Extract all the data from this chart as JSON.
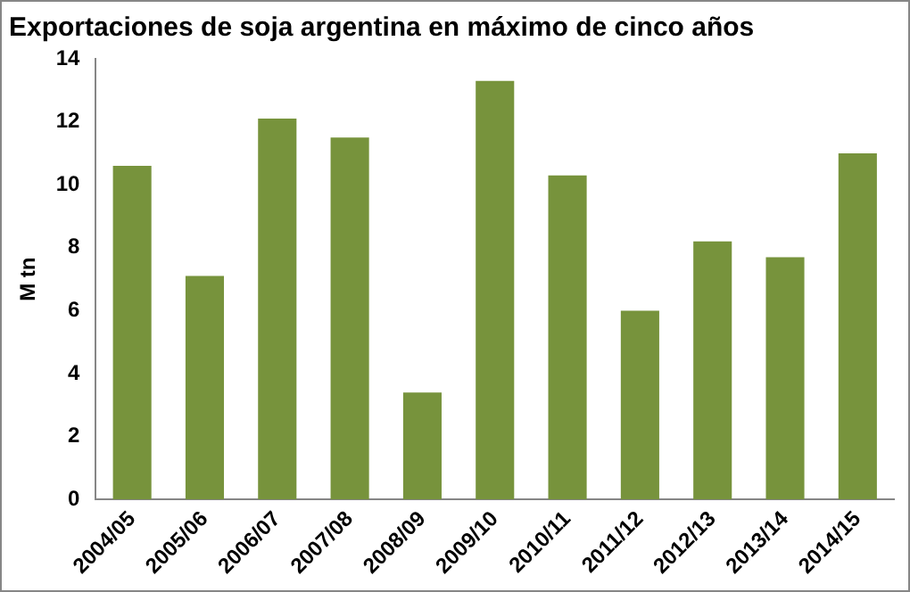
{
  "chart_data": {
    "type": "bar",
    "title": "Exportaciones de soja argentina en máximo de cinco años",
    "ylabel": "M tn",
    "categories": [
      "2004/05",
      "2005/06",
      "2006/07",
      "2007/08",
      "2008/09",
      "2009/10",
      "2010/11",
      "2011/12",
      "2012/13",
      "2013/14",
      "2014/15"
    ],
    "values": [
      10.6,
      7.1,
      12.1,
      11.5,
      3.4,
      13.3,
      10.3,
      6.0,
      8.2,
      7.7,
      11.0
    ],
    "color": "#77933c",
    "ylim": [
      0,
      14
    ],
    "yticks": [
      0,
      2,
      4,
      6,
      8,
      10,
      12,
      14
    ],
    "grid": false,
    "legend": false
  }
}
